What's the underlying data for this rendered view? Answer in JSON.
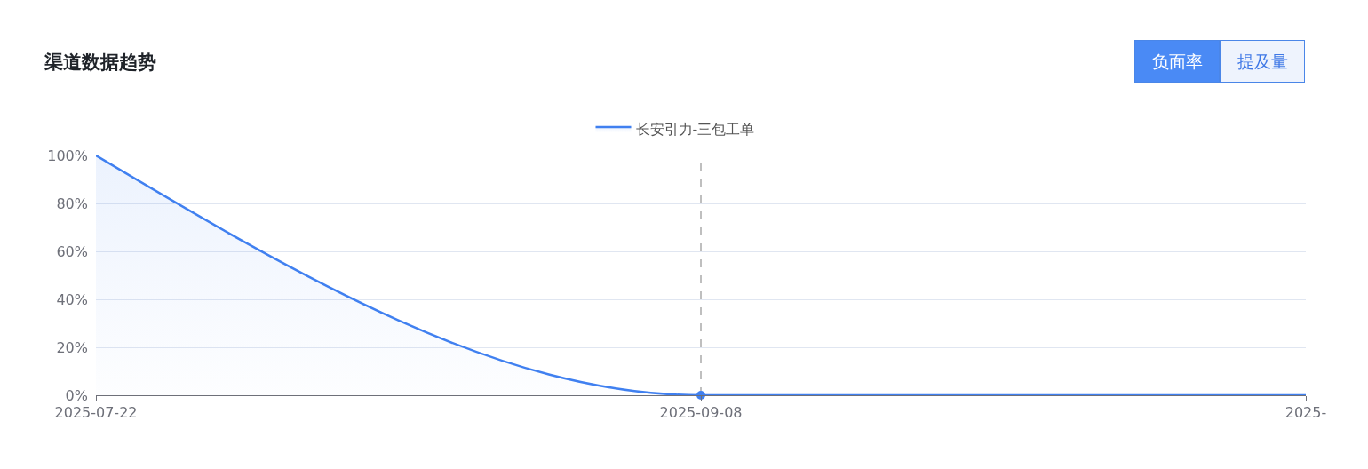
{
  "chart_data": {
    "type": "area",
    "title": "渠道数据趋势",
    "categories": [
      "2025-07-22",
      "2025-09-08",
      "2025-"
    ],
    "series": [
      {
        "name": "长安引力-三包工单",
        "color": "#4080f0",
        "values": [
          100,
          0,
          0
        ]
      },
      {
        "type": "scatter",
        "color": "#4080f0",
        "values": [
          null,
          0,
          null
        ],
        "marker": "circle"
      }
    ],
    "ylim": [
      0,
      100
    ],
    "yticks": [
      {
        "value": 0,
        "label": "0%"
      },
      {
        "value": 20,
        "label": "20%"
      },
      {
        "value": 40,
        "label": "40%"
      },
      {
        "value": 60,
        "label": "60%"
      },
      {
        "value": 80,
        "label": "80%"
      },
      {
        "value": 100,
        "label": "100%"
      }
    ],
    "grid": "y",
    "legend": "top",
    "line_style": "solid",
    "ref_lines": [
      {
        "axis": "x",
        "value": "2025-09-08",
        "color": "#aaaaaa",
        "line_style": "dashed"
      }
    ],
    "annotations": [
      "负面率",
      "提及量"
    ]
  }
}
